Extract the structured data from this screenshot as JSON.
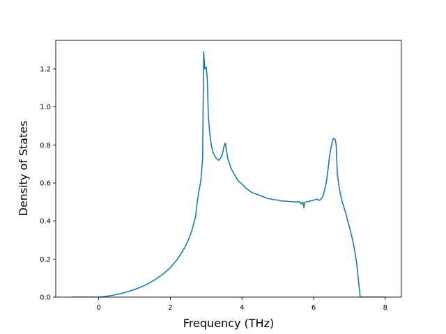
{
  "chart_data": {
    "type": "line",
    "title": "",
    "xlabel": "Frequency (THz)",
    "ylabel": "Density of States",
    "xlim": [
      -1.2,
      8.45
    ],
    "ylim": [
      0,
      1.35
    ],
    "xticks": [
      0,
      2,
      4,
      6,
      8
    ],
    "yticks": [
      0.0,
      0.2,
      0.4,
      0.6,
      0.8,
      1.0,
      1.2
    ],
    "xtick_labels": [
      "0",
      "2",
      "4",
      "6",
      "8"
    ],
    "ytick_labels": [
      "0.0",
      "0.2",
      "0.4",
      "0.6",
      "0.8",
      "1.0",
      "1.2"
    ],
    "grid": false,
    "legend": "none",
    "series": [
      {
        "name": "",
        "color": "#1f77b4",
        "x": [
          -0.75,
          0.0,
          0.2,
          0.4,
          0.6,
          0.8,
          1.0,
          1.2,
          1.4,
          1.6,
          1.8,
          2.0,
          2.2,
          2.4,
          2.5,
          2.6,
          2.65,
          2.7,
          2.75,
          2.8,
          2.84,
          2.86,
          2.88,
          2.9,
          2.93,
          2.96,
          3.0,
          3.03,
          3.06,
          3.1,
          3.15,
          3.2,
          3.28,
          3.35,
          3.4,
          3.45,
          3.5,
          3.53,
          3.56,
          3.6,
          3.7,
          3.8,
          3.9,
          4.0,
          4.1,
          4.2,
          4.3,
          4.5,
          4.7,
          4.9,
          5.0,
          5.1,
          5.2,
          5.3,
          5.4,
          5.5,
          5.6,
          5.65,
          5.7,
          5.73,
          5.75,
          5.78,
          5.8,
          5.9,
          6.0,
          6.1,
          6.15,
          6.2,
          6.25,
          6.3,
          6.35,
          6.4,
          6.45,
          6.5,
          6.55,
          6.6,
          6.63,
          6.66,
          6.7,
          6.75,
          6.8,
          6.85,
          6.9,
          6.95,
          7.0,
          7.05,
          7.1,
          7.15,
          7.2,
          7.25,
          7.3,
          7.5,
          8.0
        ],
        "y": [
          0.0,
          0.0,
          0.004,
          0.01,
          0.018,
          0.028,
          0.04,
          0.055,
          0.073,
          0.095,
          0.122,
          0.155,
          0.2,
          0.26,
          0.3,
          0.35,
          0.385,
          0.42,
          0.5,
          0.56,
          0.6,
          0.63,
          0.68,
          0.73,
          1.29,
          1.2,
          1.21,
          1.15,
          0.95,
          0.86,
          0.79,
          0.755,
          0.73,
          0.72,
          0.73,
          0.75,
          0.795,
          0.81,
          0.78,
          0.73,
          0.675,
          0.64,
          0.61,
          0.595,
          0.575,
          0.56,
          0.548,
          0.535,
          0.52,
          0.512,
          0.51,
          0.505,
          0.505,
          0.503,
          0.502,
          0.5,
          0.502,
          0.49,
          0.5,
          0.47,
          0.497,
          0.5,
          0.502,
          0.505,
          0.51,
          0.515,
          0.508,
          0.515,
          0.525,
          0.56,
          0.6,
          0.67,
          0.75,
          0.8,
          0.835,
          0.83,
          0.8,
          0.65,
          0.59,
          0.54,
          0.5,
          0.47,
          0.44,
          0.4,
          0.37,
          0.33,
          0.29,
          0.24,
          0.18,
          0.09,
          0.0,
          0.0,
          0.0
        ]
      }
    ]
  }
}
